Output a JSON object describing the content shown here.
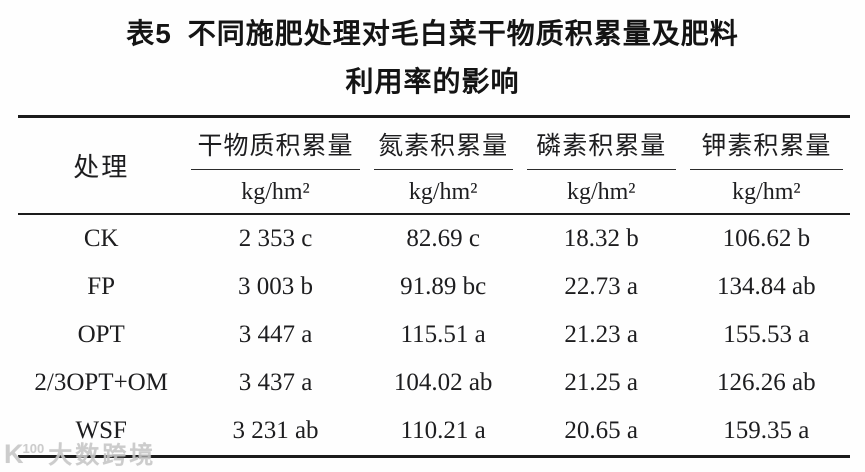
{
  "caption": {
    "table_tag": "表5",
    "line1_rest": "不同施肥处理对毛白菜干物质积累量及肥料",
    "line2": "利用率的影响"
  },
  "table": {
    "row_header": "处理",
    "columns": [
      {
        "label": "干物质积累量",
        "unit": "kg/hm²"
      },
      {
        "label": "氮素积累量",
        "unit": "kg/hm²"
      },
      {
        "label": "磷素积累量",
        "unit": "kg/hm²"
      },
      {
        "label": "钾素积累量",
        "unit": "kg/hm²"
      }
    ],
    "rows": [
      {
        "treatment": "CK",
        "dry_matter": "2 353 c",
        "nitrogen": "82.69 c",
        "phosphorus": "18.32 b",
        "potassium": "106.62 b"
      },
      {
        "treatment": "FP",
        "dry_matter": "3 003 b",
        "nitrogen": "91.89 bc",
        "phosphorus": "22.73 a",
        "potassium": "134.84 ab"
      },
      {
        "treatment": "OPT",
        "dry_matter": "3 447 a",
        "nitrogen": "115.51 a",
        "phosphorus": "21.23 a",
        "potassium": "155.53 a"
      },
      {
        "treatment": "2/3OPT+OM",
        "dry_matter": "3 437 a",
        "nitrogen": "104.02 ab",
        "phosphorus": "21.25 a",
        "potassium": "126.26 ab"
      },
      {
        "treatment": "WSF",
        "dry_matter": "3 231 ab",
        "nitrogen": "110.21 a",
        "phosphorus": "20.65 a",
        "potassium": "159.35 a"
      }
    ]
  },
  "watermark": {
    "logo": "K",
    "logo_sup": "100",
    "text": "大数跨境"
  },
  "colors": {
    "text": "#1d1d1f",
    "rule": "#1c1c1c",
    "watermark": "#c7c7c7",
    "background": "#fefefe"
  }
}
